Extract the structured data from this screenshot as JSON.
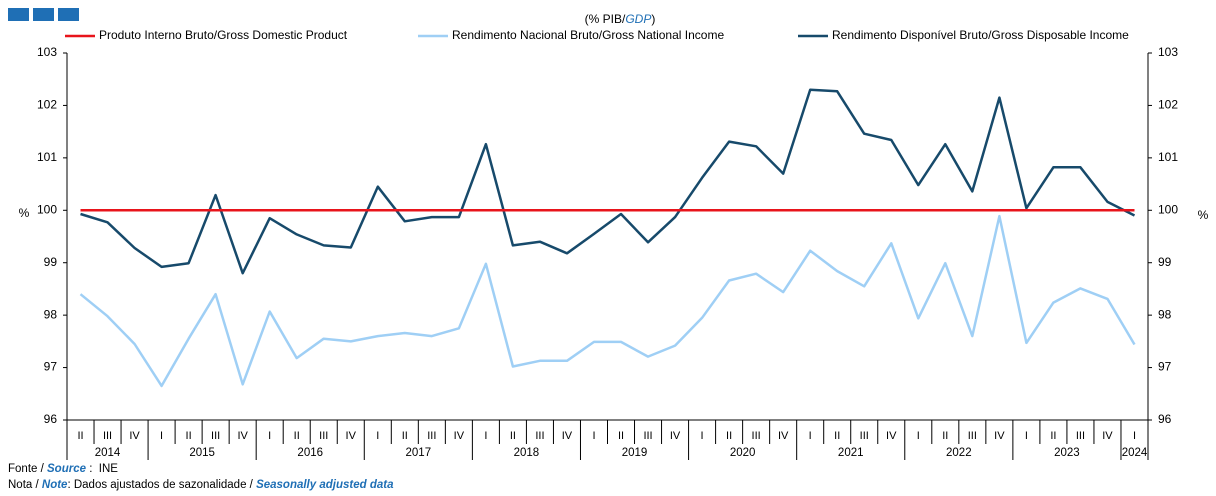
{
  "chart_data": {
    "type": "line",
    "subtitle": {
      "before": "(% PIB/",
      "em": "GDP",
      "after": ")"
    },
    "y_label": "%",
    "y2_label": "%",
    "years": [
      {
        "year": "2014",
        "quarters": [
          "II",
          "III",
          "IV"
        ]
      },
      {
        "year": "2015",
        "quarters": [
          "I",
          "II",
          "III",
          "IV"
        ]
      },
      {
        "year": "2016",
        "quarters": [
          "I",
          "II",
          "III",
          "IV"
        ]
      },
      {
        "year": "2017",
        "quarters": [
          "I",
          "II",
          "III",
          "IV"
        ]
      },
      {
        "year": "2018",
        "quarters": [
          "I",
          "II",
          "III",
          "IV"
        ]
      },
      {
        "year": "2019",
        "quarters": [
          "I",
          "II",
          "III",
          "IV"
        ]
      },
      {
        "year": "2020",
        "quarters": [
          "I",
          "II",
          "III",
          "IV"
        ]
      },
      {
        "year": "2021",
        "quarters": [
          "I",
          "II",
          "III",
          "IV"
        ]
      },
      {
        "year": "2022",
        "quarters": [
          "I",
          "II",
          "III",
          "IV"
        ]
      },
      {
        "year": "2023",
        "quarters": [
          "I",
          "II",
          "III",
          "IV"
        ]
      },
      {
        "year": "2024",
        "quarters": [
          "I"
        ]
      }
    ],
    "series": [
      {
        "name": "Produto Interno Bruto/Gross Domestic Product",
        "color": "#e8141b",
        "values": [
          100,
          100,
          100,
          100,
          100,
          100,
          100,
          100,
          100,
          100,
          100,
          100,
          100,
          100,
          100,
          100,
          100,
          100,
          100,
          100,
          100,
          100,
          100,
          100,
          100,
          100,
          100,
          100,
          100,
          100,
          100,
          100,
          100,
          100,
          100,
          100,
          100,
          100,
          100,
          100
        ]
      },
      {
        "name": "Rendimento Nacional Bruto/Gross National Income",
        "color": "#9fcff5",
        "values": [
          98.4,
          97.98,
          97.45,
          96.65,
          97.55,
          98.4,
          96.68,
          98.07,
          97.18,
          97.55,
          97.5,
          97.6,
          97.66,
          97.6,
          97.75,
          98.98,
          97.02,
          97.13,
          97.13,
          97.49,
          97.49,
          97.21,
          97.42,
          97.95,
          98.66,
          98.79,
          98.44,
          99.23,
          98.84,
          98.55,
          99.37,
          97.94,
          98.99,
          97.6,
          99.89,
          97.47,
          98.24,
          98.51,
          98.31,
          97.44
        ]
      },
      {
        "name": "Rendimento Disponível Bruto/Gross Disposable Income",
        "color": "#174a6b",
        "values": [
          99.93,
          99.77,
          99.28,
          98.92,
          98.99,
          100.29,
          98.8,
          99.85,
          99.54,
          99.33,
          99.29,
          100.45,
          99.79,
          99.87,
          99.87,
          101.26,
          99.33,
          99.4,
          99.18,
          99.55,
          99.93,
          99.39,
          99.87,
          100.62,
          101.31,
          101.22,
          100.7,
          102.3,
          102.27,
          101.46,
          101.34,
          100.48,
          101.26,
          100.36,
          102.15,
          100.04,
          100.82,
          100.82,
          100.16,
          99.9
        ]
      }
    ],
    "ylim": [
      96,
      103
    ],
    "yticks": [
      96,
      97,
      98,
      99,
      100,
      101,
      102,
      103
    ],
    "y2lim": [
      96,
      103
    ],
    "y2ticks": [
      96,
      97,
      98,
      99,
      100,
      101,
      102,
      103
    ],
    "source": {
      "pt": "Fonte / ",
      "en": "Source",
      "text": " :  INE"
    },
    "note": {
      "pt": "Nota / ",
      "en": "Note",
      "text": ": Dados ajustados de sazonalidade / ",
      "en2": "Seasonally adjusted data"
    }
  }
}
